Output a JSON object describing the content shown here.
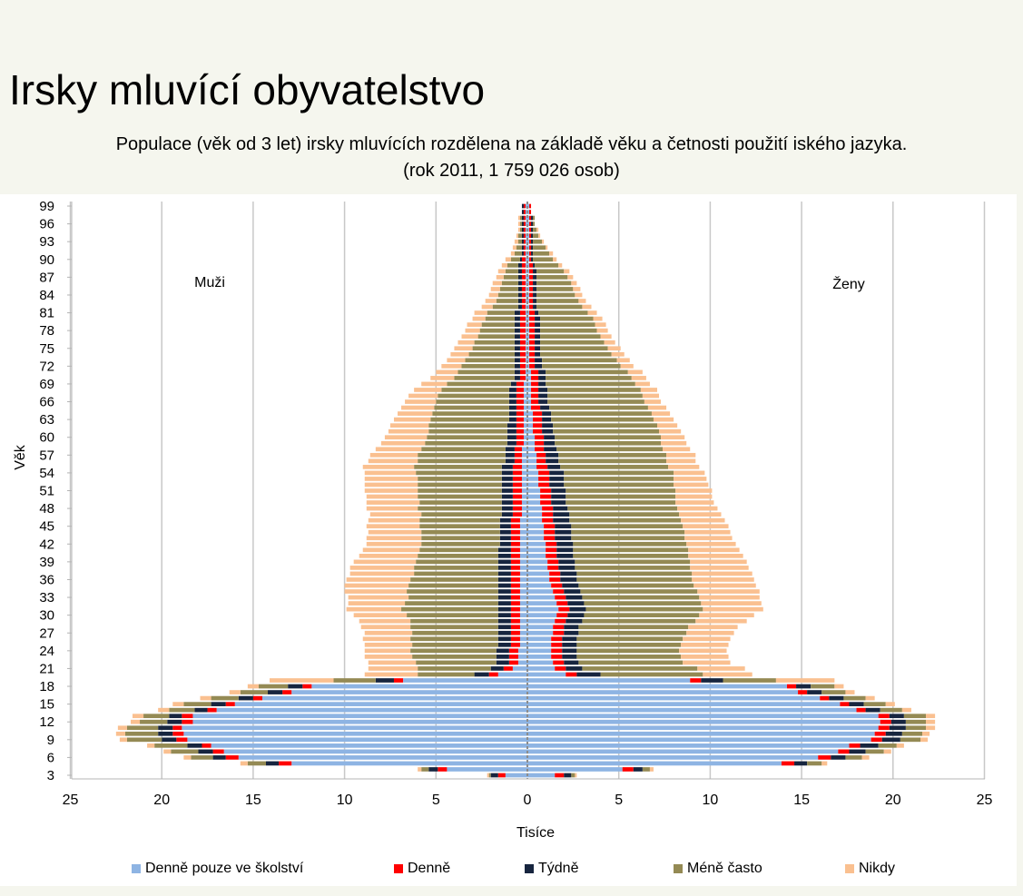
{
  "title": "Irsky mluvící obyvatelstvo",
  "subtitle_line1": "Populace (věk od 3 let) irsky mluvících rozdělena na základě věku a četnosti použití iského jazyka.",
  "subtitle_line2": "(rok 2011, 1 759 026 osob)",
  "chart_data": {
    "type": "bar",
    "orientation": "population-pyramid",
    "xlabel": "Tisíce",
    "ylabel": "Věk",
    "xlim": [
      -25,
      25
    ],
    "xticks": [
      -25,
      -20,
      -15,
      -10,
      -5,
      0,
      5,
      10,
      15,
      20,
      25
    ],
    "xtick_labels": [
      "25",
      "20",
      "15",
      "10",
      "5",
      "0",
      "5",
      "10",
      "15",
      "20",
      "25"
    ],
    "yticks_labels": [
      "3",
      "6",
      "9",
      "12",
      "15",
      "18",
      "21",
      "24",
      "27",
      "30",
      "33",
      "36",
      "39",
      "42",
      "45",
      "48",
      "51",
      "54",
      "57",
      "60",
      "63",
      "66",
      "69",
      "72",
      "75",
      "78",
      "81",
      "84",
      "87",
      "90",
      "93",
      "96",
      "99"
    ],
    "grid": "vertical",
    "legend_position": "bottom",
    "annotations": {
      "left": "Muži",
      "right": "Ženy"
    },
    "series_names": [
      "Denně pouze ve školství",
      "Denně",
      "Týdně",
      "Méně často",
      "Nikdy"
    ],
    "colors": [
      "#8eb4e3",
      "#ff0000",
      "#17253f",
      "#948a54",
      "#fac090"
    ],
    "ages": [
      3,
      4,
      5,
      6,
      7,
      8,
      9,
      10,
      11,
      12,
      13,
      14,
      15,
      16,
      17,
      18,
      19,
      20,
      21,
      22,
      23,
      24,
      25,
      26,
      27,
      28,
      29,
      30,
      31,
      32,
      33,
      34,
      35,
      36,
      37,
      38,
      39,
      40,
      41,
      42,
      43,
      44,
      45,
      46,
      47,
      48,
      49,
      50,
      51,
      52,
      53,
      54,
      55,
      56,
      57,
      58,
      59,
      60,
      61,
      62,
      63,
      64,
      65,
      66,
      67,
      68,
      69,
      70,
      71,
      72,
      73,
      74,
      75,
      76,
      77,
      78,
      79,
      80,
      81,
      82,
      83,
      84,
      85,
      86,
      87,
      88,
      89,
      90,
      91,
      92,
      93,
      94,
      95,
      96,
      97,
      98,
      99
    ],
    "males": {
      "Denně pouze ve školství": [
        1.2,
        4.4,
        12.9,
        15.8,
        16.6,
        17.3,
        18.6,
        18.8,
        18.9,
        18.3,
        18.3,
        17.0,
        16.0,
        14.5,
        12.9,
        11.8,
        6.8,
        1.6,
        0.8,
        0.5,
        0.5,
        0.5,
        0.4,
        0.4,
        0.4,
        0.4,
        0.4,
        0.4,
        0.4,
        0.4,
        0.4,
        0.4,
        0.4,
        0.4,
        0.4,
        0.4,
        0.4,
        0.4,
        0.4,
        0.4,
        0.4,
        0.4,
        0.4,
        0.4,
        0.3,
        0.3,
        0.3,
        0.3,
        0.3,
        0.3,
        0.3,
        0.3,
        0.3,
        0.3,
        0.3,
        0.3,
        0.2,
        0.2,
        0.2,
        0.2,
        0.2,
        0.2,
        0.2,
        0.2,
        0.2,
        0.2,
        0.2,
        0.1,
        0.1,
        0.1,
        0.1,
        0.1,
        0.1,
        0.1,
        0.1,
        0.1,
        0.1,
        0.1,
        0.1,
        0.1,
        0.1,
        0.1,
        0.1,
        0.1,
        0.1,
        0.1,
        0.1,
        0.1,
        0.1,
        0.1,
        0.1,
        0.1,
        0.1,
        0.1,
        0.1,
        0.1,
        0.1
      ],
      "Denně": [
        0.4,
        0.5,
        0.7,
        0.7,
        0.6,
        0.5,
        0.6,
        0.6,
        0.5,
        0.6,
        0.6,
        0.5,
        0.5,
        0.5,
        0.5,
        0.5,
        0.5,
        0.5,
        0.5,
        0.5,
        0.5,
        0.5,
        0.5,
        0.5,
        0.5,
        0.5,
        0.5,
        0.5,
        0.5,
        0.5,
        0.5,
        0.5,
        0.5,
        0.5,
        0.5,
        0.5,
        0.5,
        0.5,
        0.5,
        0.5,
        0.5,
        0.5,
        0.5,
        0.5,
        0.5,
        0.5,
        0.5,
        0.5,
        0.5,
        0.5,
        0.5,
        0.5,
        0.5,
        0.4,
        0.4,
        0.4,
        0.4,
        0.4,
        0.4,
        0.4,
        0.4,
        0.4,
        0.4,
        0.4,
        0.4,
        0.4,
        0.4,
        0.3,
        0.3,
        0.3,
        0.3,
        0.3,
        0.3,
        0.3,
        0.3,
        0.3,
        0.3,
        0.3,
        0.3,
        0.2,
        0.2,
        0.2,
        0.2,
        0.2,
        0.2,
        0.2,
        0.2,
        0.2,
        0.1,
        0.1,
        0.1,
        0.1,
        0.1,
        0.1,
        0.1,
        0.1,
        0.1
      ],
      "Týdně": [
        0.4,
        0.5,
        0.7,
        0.7,
        0.8,
        0.8,
        0.8,
        0.8,
        0.8,
        0.8,
        0.7,
        0.7,
        0.8,
        0.8,
        0.8,
        0.8,
        1.0,
        0.8,
        0.7,
        0.7,
        0.7,
        0.7,
        0.7,
        0.7,
        0.7,
        0.7,
        0.7,
        0.7,
        0.7,
        0.7,
        0.7,
        0.7,
        0.7,
        0.7,
        0.7,
        0.7,
        0.7,
        0.7,
        0.7,
        0.6,
        0.6,
        0.6,
        0.6,
        0.6,
        0.6,
        0.6,
        0.6,
        0.6,
        0.6,
        0.6,
        0.6,
        0.6,
        0.6,
        0.5,
        0.5,
        0.5,
        0.5,
        0.5,
        0.5,
        0.5,
        0.4,
        0.4,
        0.4,
        0.4,
        0.4,
        0.4,
        0.3,
        0.3,
        0.3,
        0.3,
        0.3,
        0.3,
        0.3,
        0.3,
        0.3,
        0.3,
        0.3,
        0.3,
        0.3,
        0.2,
        0.2,
        0.2,
        0.2,
        0.2,
        0.2,
        0.2,
        0.2,
        0.1,
        0.1,
        0.1,
        0.1,
        0.1,
        0.1,
        0.1,
        0.1,
        0.1,
        0.1
      ],
      "Méně často": [
        0.1,
        0.4,
        1.0,
        1.2,
        1.5,
        1.8,
        1.9,
        1.8,
        1.7,
        1.5,
        1.4,
        1.4,
        1.5,
        1.5,
        1.5,
        1.6,
        2.3,
        3.1,
        4.0,
        4.4,
        4.6,
        4.7,
        4.7,
        4.8,
        4.7,
        4.8,
        4.8,
        5.0,
        5.3,
        5.1,
        4.9,
        5.0,
        4.9,
        4.8,
        4.6,
        4.6,
        4.5,
        4.4,
        4.3,
        4.3,
        4.3,
        4.3,
        4.4,
        4.4,
        4.4,
        4.6,
        4.5,
        4.6,
        4.6,
        4.6,
        4.6,
        4.7,
        4.8,
        4.8,
        4.8,
        4.6,
        4.5,
        4.4,
        4.3,
        4.3,
        4.3,
        4.2,
        4.1,
        4.0,
        3.9,
        3.7,
        3.5,
        3.3,
        3.1,
        2.9,
        2.7,
        2.5,
        2.3,
        2.2,
        2.0,
        1.9,
        1.8,
        1.6,
        1.5,
        1.4,
        1.2,
        1.1,
        1.0,
        0.9,
        0.8,
        0.7,
        0.6,
        0.5,
        0.4,
        0.3,
        0.2,
        0.2,
        0.1,
        0.1,
        0.1,
        0.0,
        0.0
      ],
      "Nikdy": [
        0.1,
        0.2,
        0.4,
        0.4,
        0.4,
        0.4,
        0.4,
        0.5,
        0.5,
        0.5,
        0.6,
        0.6,
        0.6,
        0.6,
        0.6,
        0.6,
        3.5,
        2.9,
        2.7,
        2.6,
        2.6,
        2.5,
        2.6,
        2.6,
        2.6,
        2.7,
        2.8,
        2.9,
        3.0,
        3.1,
        3.3,
        3.4,
        3.5,
        3.5,
        3.5,
        3.5,
        3.4,
        3.2,
        3.1,
        3.0,
        3.0,
        2.9,
        2.9,
        2.8,
        2.8,
        2.8,
        2.9,
        2.8,
        2.9,
        2.9,
        2.9,
        2.8,
        2.8,
        2.7,
        2.6,
        2.5,
        2.4,
        2.3,
        2.2,
        2.1,
        2.0,
        1.9,
        1.8,
        1.7,
        1.6,
        1.5,
        1.4,
        1.3,
        1.2,
        1.1,
        1.0,
        1.0,
        1.0,
        0.9,
        0.9,
        0.8,
        0.8,
        0.7,
        0.7,
        0.6,
        0.6,
        0.5,
        0.5,
        0.5,
        0.4,
        0.4,
        0.3,
        0.3,
        0.2,
        0.2,
        0.2,
        0.1,
        0.1,
        0.1,
        0.1,
        0.0,
        0.0
      ]
    },
    "females": {
      "Denně pouze ve školství": [
        1.5,
        5.2,
        13.9,
        15.9,
        17.0,
        17.6,
        18.8,
        19.0,
        19.2,
        19.3,
        19.2,
        18.0,
        17.1,
        16.0,
        14.8,
        14.2,
        8.9,
        2.1,
        1.5,
        1.4,
        1.3,
        1.3,
        1.3,
        1.3,
        1.4,
        1.4,
        1.5,
        1.6,
        1.7,
        1.6,
        1.5,
        1.4,
        1.3,
        1.2,
        1.2,
        1.1,
        1.1,
        1.0,
        1.0,
        1.0,
        0.9,
        0.9,
        0.9,
        0.8,
        0.8,
        0.8,
        0.7,
        0.7,
        0.7,
        0.6,
        0.6,
        0.6,
        0.5,
        0.5,
        0.5,
        0.4,
        0.4,
        0.4,
        0.3,
        0.3,
        0.3,
        0.3,
        0.2,
        0.2,
        0.2,
        0.2,
        0.2,
        0.2,
        0.2,
        0.1,
        0.1,
        0.1,
        0.1,
        0.1,
        0.1,
        0.1,
        0.1,
        0.1,
        0.1,
        0.1,
        0.1,
        0.1,
        0.1,
        0.1,
        0.1,
        0.1,
        0.1,
        0.1,
        0.1,
        0.1,
        0.1,
        0.1,
        0.1,
        0.1,
        0.1,
        0.1,
        0.1
      ],
      "Denně": [
        0.5,
        0.6,
        0.7,
        0.7,
        0.6,
        0.6,
        0.6,
        0.6,
        0.6,
        0.6,
        0.6,
        0.5,
        0.5,
        0.5,
        0.5,
        0.5,
        0.6,
        0.6,
        0.6,
        0.6,
        0.6,
        0.6,
        0.6,
        0.6,
        0.6,
        0.6,
        0.6,
        0.6,
        0.6,
        0.6,
        0.6,
        0.6,
        0.6,
        0.6,
        0.6,
        0.6,
        0.6,
        0.6,
        0.6,
        0.6,
        0.6,
        0.6,
        0.6,
        0.6,
        0.6,
        0.6,
        0.6,
        0.6,
        0.6,
        0.6,
        0.6,
        0.6,
        0.6,
        0.5,
        0.5,
        0.5,
        0.5,
        0.5,
        0.5,
        0.5,
        0.5,
        0.5,
        0.5,
        0.4,
        0.4,
        0.4,
        0.4,
        0.4,
        0.4,
        0.3,
        0.3,
        0.3,
        0.3,
        0.3,
        0.3,
        0.3,
        0.3,
        0.3,
        0.3,
        0.2,
        0.2,
        0.2,
        0.2,
        0.2,
        0.2,
        0.2,
        0.2,
        0.1,
        0.1,
        0.1,
        0.1,
        0.1,
        0.1,
        0.1,
        0.1,
        0.1,
        0.1
      ],
      "Týdně": [
        0.4,
        0.5,
        0.7,
        0.8,
        0.9,
        1.0,
        1.0,
        0.9,
        0.9,
        0.8,
        0.8,
        0.8,
        0.8,
        0.8,
        0.8,
        0.8,
        1.2,
        1.3,
        0.9,
        0.8,
        0.8,
        0.8,
        0.8,
        0.8,
        0.8,
        0.8,
        0.9,
        0.9,
        0.9,
        0.9,
        0.9,
        0.9,
        0.9,
        0.9,
        0.9,
        0.9,
        0.9,
        0.9,
        0.9,
        0.9,
        0.9,
        0.9,
        0.9,
        0.9,
        0.9,
        0.8,
        0.8,
        0.8,
        0.8,
        0.8,
        0.8,
        0.8,
        0.7,
        0.7,
        0.7,
        0.7,
        0.6,
        0.6,
        0.6,
        0.6,
        0.5,
        0.5,
        0.5,
        0.5,
        0.5,
        0.5,
        0.4,
        0.4,
        0.4,
        0.4,
        0.4,
        0.3,
        0.3,
        0.3,
        0.3,
        0.3,
        0.3,
        0.3,
        0.2,
        0.2,
        0.2,
        0.2,
        0.2,
        0.2,
        0.2,
        0.2,
        0.1,
        0.1,
        0.1,
        0.1,
        0.1,
        0.1,
        0.1,
        0.1,
        0.1,
        0.0,
        0.0
      ],
      "Méně často": [
        0.2,
        0.4,
        0.8,
        0.9,
        1.0,
        1.0,
        1.1,
        1.1,
        1.1,
        1.1,
        1.2,
        1.2,
        1.2,
        1.2,
        1.3,
        1.3,
        2.9,
        5.6,
        6.3,
        5.7,
        5.7,
        5.6,
        5.7,
        5.8,
        5.9,
        6.0,
        6.2,
        6.3,
        6.4,
        6.4,
        6.4,
        6.4,
        6.3,
        6.3,
        6.3,
        6.3,
        6.3,
        6.3,
        6.3,
        6.2,
        6.2,
        6.2,
        6.1,
        6.1,
        6.0,
        6.0,
        6.0,
        6.0,
        6.0,
        6.0,
        6.0,
        6.0,
        5.9,
        5.9,
        5.9,
        5.8,
        5.8,
        5.8,
        5.8,
        5.7,
        5.6,
        5.5,
        5.4,
        5.3,
        5.2,
        5.1,
        4.9,
        4.7,
        4.5,
        4.3,
        4.1,
        3.9,
        3.7,
        3.5,
        3.3,
        3.1,
        3.0,
        2.9,
        2.7,
        2.5,
        2.3,
        2.1,
        2.0,
        1.9,
        1.7,
        1.5,
        1.3,
        1.1,
        0.9,
        0.7,
        0.5,
        0.3,
        0.2,
        0.1,
        0.1,
        0.0,
        0.0
      ],
      "Nikdy": [
        0.1,
        0.2,
        0.3,
        0.4,
        0.4,
        0.4,
        0.4,
        0.4,
        0.5,
        0.5,
        0.5,
        0.5,
        0.5,
        0.5,
        0.5,
        0.5,
        3.2,
        2.7,
        2.6,
        2.6,
        2.6,
        2.6,
        2.6,
        2.6,
        2.6,
        2.7,
        2.8,
        3.0,
        3.3,
        3.3,
        3.3,
        3.4,
        3.4,
        3.4,
        3.3,
        3.2,
        3.1,
        3.0,
        2.8,
        2.7,
        2.6,
        2.5,
        2.5,
        2.4,
        2.3,
        2.2,
        2.1,
        2.0,
        2.0,
        1.9,
        1.8,
        1.7,
        1.7,
        1.6,
        1.6,
        1.5,
        1.4,
        1.3,
        1.2,
        1.1,
        1.1,
        1.0,
        1.0,
        0.9,
        0.9,
        0.9,
        0.8,
        0.8,
        0.8,
        0.7,
        0.7,
        0.7,
        0.7,
        0.6,
        0.6,
        0.6,
        0.6,
        0.5,
        0.5,
        0.5,
        0.4,
        0.4,
        0.4,
        0.3,
        0.3,
        0.3,
        0.2,
        0.2,
        0.2,
        0.1,
        0.1,
        0.1,
        0.1,
        0.0,
        0.0,
        0.0,
        0.0
      ]
    }
  }
}
